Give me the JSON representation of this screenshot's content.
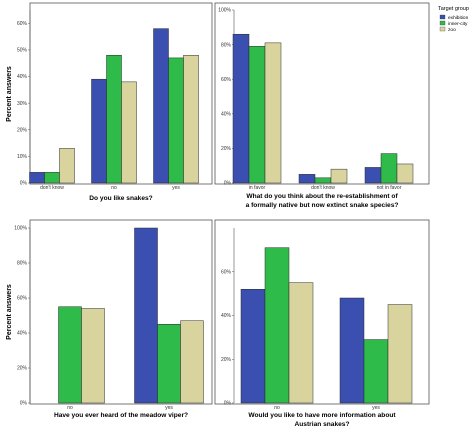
{
  "legend": {
    "title": "Target group",
    "entries": [
      {
        "label": "exhibition",
        "color": "#3a4fb0"
      },
      {
        "label": "inner-city",
        "color": "#2ebb4a"
      },
      {
        "label": "zoo",
        "color": "#d9d49e"
      }
    ]
  },
  "y_axis_label": "Percent answers",
  "chart_data": [
    {
      "type": "bar",
      "title": "Do you like snakes?",
      "categories": [
        "don't know",
        "no",
        "yes"
      ],
      "series": [
        {
          "name": "exhibition",
          "values": [
            4,
            39,
            58
          ]
        },
        {
          "name": "inner-city",
          "values": [
            4,
            48,
            47
          ]
        },
        {
          "name": "zoo",
          "values": [
            13,
            38,
            48
          ]
        }
      ],
      "ylabel": "Percent answers",
      "yticks": [
        0,
        10,
        20,
        30,
        40,
        50,
        60
      ],
      "ytick_labels": [
        "0%",
        "10%",
        "20%",
        "30%",
        "40%",
        "50%",
        "60%"
      ],
      "ylim": [
        0,
        65
      ]
    },
    {
      "type": "bar",
      "title": "What do you think about the re-establishment of a formally native but now extinct snake species?",
      "categories": [
        "in favor",
        "don't know",
        "not in favor"
      ],
      "series": [
        {
          "name": "exhibition",
          "values": [
            86,
            5,
            9
          ]
        },
        {
          "name": "inner-city",
          "values": [
            79,
            3,
            17
          ]
        },
        {
          "name": "zoo",
          "values": [
            81,
            8,
            11
          ]
        }
      ],
      "ylabel": "",
      "yticks": [
        0,
        20,
        40,
        60,
        80,
        100
      ],
      "ytick_labels": [
        "0%",
        "20%",
        "40%",
        "60%",
        "80%",
        "100%"
      ],
      "ylim": [
        0,
        100
      ]
    },
    {
      "type": "bar",
      "title": "Have you ever heard of the meadow viper?",
      "categories": [
        "no",
        "yes"
      ],
      "series": [
        {
          "name": "exhibition",
          "values": [
            0,
            100
          ]
        },
        {
          "name": "inner-city",
          "values": [
            55,
            45
          ]
        },
        {
          "name": "zoo",
          "values": [
            54,
            47
          ]
        }
      ],
      "ylabel": "Percent answers",
      "yticks": [
        0,
        20,
        40,
        60,
        80,
        100
      ],
      "ytick_labels": [
        "0%",
        "20%",
        "40%",
        "60%",
        "80%",
        "100%"
      ],
      "ylim": [
        0,
        100
      ]
    },
    {
      "type": "bar",
      "title": "Would you like to have more information about Austrian snakes?",
      "categories": [
        "no",
        "yes"
      ],
      "series": [
        {
          "name": "exhibition",
          "values": [
            52,
            48
          ]
        },
        {
          "name": "inner-city",
          "values": [
            71,
            29
          ]
        },
        {
          "name": "zoo",
          "values": [
            55,
            45
          ]
        }
      ],
      "ylabel": "",
      "yticks": [
        0,
        20,
        40,
        60
      ],
      "ytick_labels": [
        "0%",
        "20%",
        "40%",
        "60%"
      ],
      "ylim": [
        0,
        80
      ]
    }
  ]
}
